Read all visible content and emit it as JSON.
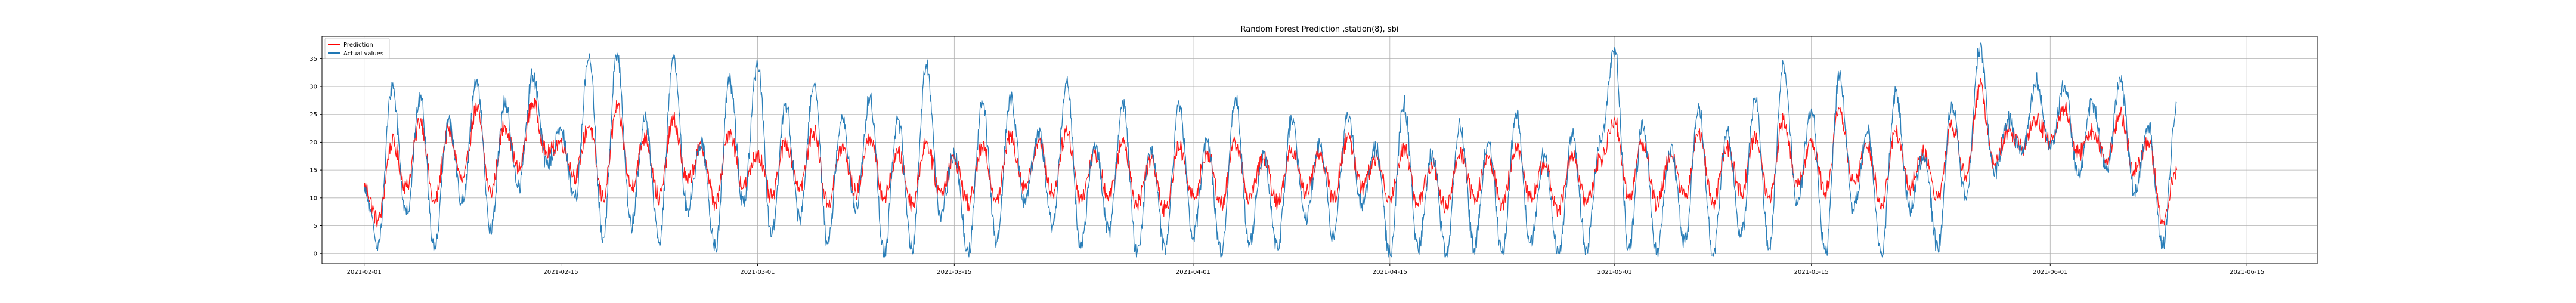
{
  "chart_data": {
    "type": "line",
    "title": "Random Forest Prediction ,station(8), sbi",
    "xlabel": "",
    "ylabel": "",
    "x_range": [
      "2021-01-29",
      "2021-06-20"
    ],
    "ylim": [
      -1.8,
      39.0
    ],
    "x_ticks": [
      "2021-02-01",
      "2021-02-15",
      "2021-03-01",
      "2021-03-15",
      "2021-04-01",
      "2021-04-15",
      "2021-05-01",
      "2021-05-15",
      "2021-06-01",
      "2021-06-15"
    ],
    "y_ticks": [
      0,
      5,
      10,
      15,
      20,
      25,
      30,
      35
    ],
    "grid": true,
    "legend": {
      "placement": "top-left",
      "entries": [
        "Prediction",
        "Actual values"
      ]
    },
    "data_start": "2021-02-01",
    "data_end": "2021-06-10",
    "series": [
      {
        "name": "Prediction",
        "color": "#ff0000",
        "x": [
          "2021-02-01",
          "2021-02-02",
          "2021-02-03",
          "2021-02-04",
          "2021-02-05",
          "2021-02-06",
          "2021-02-07",
          "2021-02-08",
          "2021-02-09",
          "2021-02-10",
          "2021-02-11",
          "2021-02-12",
          "2021-02-13",
          "2021-02-14",
          "2021-02-15",
          "2021-02-16",
          "2021-02-17",
          "2021-02-18",
          "2021-02-19",
          "2021-02-20",
          "2021-02-21",
          "2021-02-22",
          "2021-02-23",
          "2021-02-24",
          "2021-02-25",
          "2021-02-26",
          "2021-02-27",
          "2021-02-28",
          "2021-03-01",
          "2021-03-02",
          "2021-03-03",
          "2021-03-04",
          "2021-03-05",
          "2021-03-06",
          "2021-03-07",
          "2021-03-08",
          "2021-03-09",
          "2021-03-10",
          "2021-03-11",
          "2021-03-12",
          "2021-03-13",
          "2021-03-14",
          "2021-03-15",
          "2021-03-16",
          "2021-03-17",
          "2021-03-18",
          "2021-03-19",
          "2021-03-20",
          "2021-03-21",
          "2021-03-22",
          "2021-03-23",
          "2021-03-24",
          "2021-03-25",
          "2021-03-26",
          "2021-03-27",
          "2021-03-28",
          "2021-03-29",
          "2021-03-30",
          "2021-03-31",
          "2021-04-01",
          "2021-04-02",
          "2021-04-03",
          "2021-04-04",
          "2021-04-05",
          "2021-04-06",
          "2021-04-07",
          "2021-04-08",
          "2021-04-09",
          "2021-04-10",
          "2021-04-11",
          "2021-04-12",
          "2021-04-13",
          "2021-04-14",
          "2021-04-15",
          "2021-04-16",
          "2021-04-17",
          "2021-04-18",
          "2021-04-19",
          "2021-04-20",
          "2021-04-21",
          "2021-04-22",
          "2021-04-23",
          "2021-04-24",
          "2021-04-25",
          "2021-04-26",
          "2021-04-27",
          "2021-04-28",
          "2021-04-29",
          "2021-04-30",
          "2021-05-01",
          "2021-05-02",
          "2021-05-03",
          "2021-05-04",
          "2021-05-05",
          "2021-05-06",
          "2021-05-07",
          "2021-05-08",
          "2021-05-09",
          "2021-05-10",
          "2021-05-11",
          "2021-05-12",
          "2021-05-13",
          "2021-05-14",
          "2021-05-15",
          "2021-05-16",
          "2021-05-17",
          "2021-05-18",
          "2021-05-19",
          "2021-05-20",
          "2021-05-21",
          "2021-05-22",
          "2021-05-23",
          "2021-05-24",
          "2021-05-25",
          "2021-05-26",
          "2021-05-27",
          "2021-05-28",
          "2021-05-29",
          "2021-05-30",
          "2021-05-31",
          "2021-06-01",
          "2021-06-02",
          "2021-06-03",
          "2021-06-04",
          "2021-06-05",
          "2021-06-06",
          "2021-06-07",
          "2021-06-08",
          "2021-06-09",
          "2021-06-10"
        ],
        "values": [
          12,
          6,
          20,
          12,
          24,
          9,
          22,
          13,
          26,
          11,
          23,
          15,
          27,
          18,
          20,
          14,
          23,
          10,
          26,
          12,
          21,
          10,
          24,
          13,
          19,
          9,
          22,
          12,
          18,
          10,
          20,
          12,
          22,
          9,
          19,
          11,
          21,
          10,
          18,
          9,
          20,
          11,
          17,
          9,
          19,
          10,
          21,
          12,
          20,
          11,
          22,
          10,
          18,
          10,
          20,
          9,
          17,
          8,
          19,
          10,
          18,
          9,
          20,
          10,
          17,
          9,
          19,
          11,
          18,
          10,
          21,
          12,
          17,
          10,
          19,
          9,
          16,
          8,
          18,
          10,
          17,
          9,
          19,
          10,
          16,
          8,
          18,
          9,
          17,
          24,
          10,
          20,
          9,
          18,
          10,
          22,
          9,
          19,
          11,
          21,
          10,
          24,
          12,
          20,
          11,
          26,
          13,
          19,
          9,
          22,
          12,
          18,
          10,
          23,
          14,
          30,
          16,
          22,
          19,
          24,
          20,
          26,
          18,
          22,
          17,
          25,
          15,
          20,
          6,
          15
        ]
      },
      {
        "name": "Actual values",
        "color": "#1f77b4",
        "x": [
          "2021-02-01",
          "2021-02-02",
          "2021-02-03",
          "2021-02-04",
          "2021-02-05",
          "2021-02-06",
          "2021-02-07",
          "2021-02-08",
          "2021-02-09",
          "2021-02-10",
          "2021-02-11",
          "2021-02-12",
          "2021-02-13",
          "2021-02-14",
          "2021-02-15",
          "2021-02-16",
          "2021-02-17",
          "2021-02-18",
          "2021-02-19",
          "2021-02-20",
          "2021-02-21",
          "2021-02-22",
          "2021-02-23",
          "2021-02-24",
          "2021-02-25",
          "2021-02-26",
          "2021-02-27",
          "2021-02-28",
          "2021-03-01",
          "2021-03-02",
          "2021-03-03",
          "2021-03-04",
          "2021-03-05",
          "2021-03-06",
          "2021-03-07",
          "2021-03-08",
          "2021-03-09",
          "2021-03-10",
          "2021-03-11",
          "2021-03-12",
          "2021-03-13",
          "2021-03-14",
          "2021-03-15",
          "2021-03-16",
          "2021-03-17",
          "2021-03-18",
          "2021-03-19",
          "2021-03-20",
          "2021-03-21",
          "2021-03-22",
          "2021-03-23",
          "2021-03-24",
          "2021-03-25",
          "2021-03-26",
          "2021-03-27",
          "2021-03-28",
          "2021-03-29",
          "2021-03-30",
          "2021-03-31",
          "2021-04-01",
          "2021-04-02",
          "2021-04-03",
          "2021-04-04",
          "2021-04-05",
          "2021-04-06",
          "2021-04-07",
          "2021-04-08",
          "2021-04-09",
          "2021-04-10",
          "2021-04-11",
          "2021-04-12",
          "2021-04-13",
          "2021-04-14",
          "2021-04-15",
          "2021-04-16",
          "2021-04-17",
          "2021-04-18",
          "2021-04-19",
          "2021-04-20",
          "2021-04-21",
          "2021-04-22",
          "2021-04-23",
          "2021-04-24",
          "2021-04-25",
          "2021-04-26",
          "2021-04-27",
          "2021-04-28",
          "2021-04-29",
          "2021-04-30",
          "2021-05-01",
          "2021-05-02",
          "2021-05-03",
          "2021-05-04",
          "2021-05-05",
          "2021-05-06",
          "2021-05-07",
          "2021-05-08",
          "2021-05-09",
          "2021-05-10",
          "2021-05-11",
          "2021-05-12",
          "2021-05-13",
          "2021-05-14",
          "2021-05-15",
          "2021-05-16",
          "2021-05-17",
          "2021-05-18",
          "2021-05-19",
          "2021-05-20",
          "2021-05-21",
          "2021-05-22",
          "2021-05-23",
          "2021-05-24",
          "2021-05-25",
          "2021-05-26",
          "2021-05-27",
          "2021-05-28",
          "2021-05-29",
          "2021-05-30",
          "2021-05-31",
          "2021-06-01",
          "2021-06-02",
          "2021-06-03",
          "2021-06-04",
          "2021-06-05",
          "2021-06-06",
          "2021-06-07",
          "2021-06-08",
          "2021-06-09",
          "2021-06-10"
        ],
        "values": [
          11,
          2,
          30,
          7,
          28,
          1,
          24,
          9,
          31,
          4,
          27,
          12,
          32,
          16,
          22,
          10,
          35,
          3,
          36,
          5,
          24,
          2,
          35,
          8,
          20,
          1,
          31,
          9,
          34,
          3,
          27,
          6,
          30,
          2,
          25,
          8,
          28,
          0,
          24,
          1,
          34,
          7,
          18,
          0,
          27,
          2,
          28,
          9,
          22,
          5,
          31,
          1,
          20,
          4,
          27,
          0,
          19,
          1,
          27,
          3,
          20,
          0,
          28,
          2,
          18,
          1,
          24,
          6,
          20,
          3,
          25,
          9,
          19,
          0,
          27,
          1,
          18,
          0,
          23,
          1,
          20,
          0,
          25,
          2,
          18,
          0,
          21,
          1,
          20,
          37,
          1,
          23,
          0,
          19,
          2,
          26,
          0,
          22,
          3,
          28,
          1,
          34,
          9,
          26,
          0,
          32,
          8,
          22,
          0,
          29,
          8,
          18,
          1,
          27,
          10,
          37,
          14,
          24,
          18,
          31,
          19,
          30,
          14,
          27,
          15,
          31,
          11,
          23,
          1,
          27
        ]
      }
    ]
  }
}
